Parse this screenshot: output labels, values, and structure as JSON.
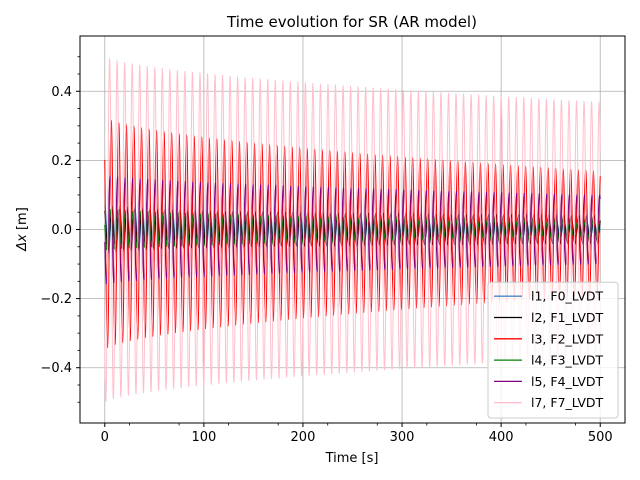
{
  "chart_data": {
    "type": "line",
    "title": "Time evolution for SR (AR model)",
    "xlabel": "Time [s]",
    "ylabel_symbol": "Δx",
    "ylabel_unit": "[m]",
    "xlim": [
      -25,
      525
    ],
    "ylim": [
      -0.56,
      0.56
    ],
    "xticks": [
      0,
      100,
      200,
      300,
      400,
      500
    ],
    "yticks": [
      -0.4,
      -0.2,
      0.0,
      0.2,
      0.4
    ],
    "xtick_labels": [
      "0",
      "100",
      "200",
      "300",
      "400",
      "500"
    ],
    "ytick_labels": [
      "−0.4",
      "−0.2",
      "0.0",
      "0.2",
      "0.4"
    ],
    "grid": true,
    "legend_position": "lower-right",
    "oscillation_period_s": 7.6,
    "series": [
      {
        "name": "l1, F0_LVDT",
        "color": "#4a87c5",
        "amp_start": 0.07,
        "amp_end": 0.02,
        "offset": 0.0
      },
      {
        "name": "l2, F1_LVDT",
        "color": "#000000",
        "amp_start": 0.06,
        "amp_end": 0.04,
        "offset": 0.0
      },
      {
        "name": "l3, F2_LVDT",
        "color": "#ff0000",
        "amp_start": 0.34,
        "amp_end": 0.18,
        "offset": -0.01
      },
      {
        "name": "l4, F3_LVDT",
        "color": "#008000",
        "amp_start": 0.06,
        "amp_end": 0.02,
        "offset": 0.0
      },
      {
        "name": "l5, F4_LVDT",
        "color": "#800080",
        "amp_start": 0.16,
        "amp_end": 0.1,
        "offset": 0.0
      },
      {
        "name": "l7, F7_LVDT",
        "color": "#ffc0cb",
        "amp_start": 0.505,
        "amp_end": 0.37,
        "offset": 0.0
      }
    ]
  }
}
